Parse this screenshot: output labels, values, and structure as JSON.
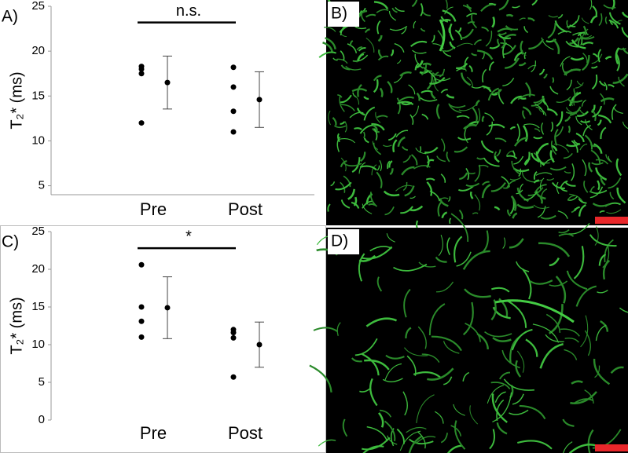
{
  "chart_data": [
    {
      "type": "dot",
      "panel_label": "A)",
      "ylabel": "T₂* (ms)",
      "categories": [
        "Pre",
        "Post"
      ],
      "points": [
        [
          18.3,
          18.0,
          17.5,
          12.0
        ],
        [
          18.2,
          16.0,
          13.3,
          11.0
        ]
      ],
      "means": [
        16.5,
        14.6
      ],
      "errors": [
        2.95,
        3.1
      ],
      "ylim": [
        4,
        25
      ],
      "yticks": [
        5,
        10,
        15,
        20,
        25
      ],
      "annotation": {
        "text": "n.s.",
        "y": 23.2
      },
      "color": "#000000"
    },
    {
      "type": "dot",
      "panel_label": "C)",
      "ylabel": "T₂* (ms)",
      "categories": [
        "Pre",
        "Post"
      ],
      "points": [
        [
          20.6,
          15.0,
          13.1,
          11.0
        ],
        [
          12.0,
          11.6,
          10.9,
          5.7
        ]
      ],
      "means": [
        14.9,
        10.0
      ],
      "errors": [
        4.1,
        3.0
      ],
      "ylim": [
        0,
        25
      ],
      "yticks": [
        0,
        5,
        10,
        15,
        20,
        25
      ],
      "annotation": {
        "text": "*",
        "y": 22.8
      },
      "color": "#000000"
    }
  ],
  "images": [
    {
      "label": "B)"
    },
    {
      "label": "D)"
    }
  ]
}
